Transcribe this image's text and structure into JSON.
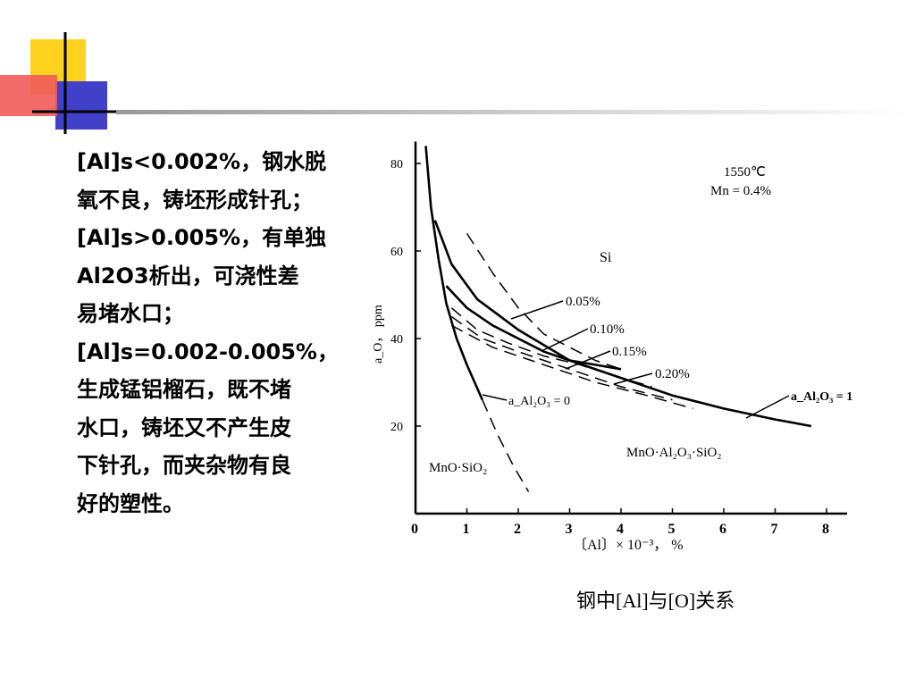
{
  "theme": {
    "accent_yellow": "#FFD21E",
    "accent_red": "#F25A5A",
    "accent_blue": "#4040C8",
    "rule_color": "#000000"
  },
  "text_lines": [
    "[Al]s<0.002%，钢水脱",
    "氧不良，铸坯形成针孔；",
    "[Al]s>0.005%，有单独",
    "Al2O3析出，可浇性差",
    "易堵水口；",
    "[Al]s=0.002-0.005%，",
    "生成锰铝榴石，既不堵",
    "水口，铸坯又不产生皮",
    "下针孔，而夹杂物有良",
    "好的塑性。"
  ],
  "caption": "钢中[Al]与[O]关系",
  "chart_data": {
    "type": "line",
    "xlabel": "〔Al〕× 10⁻³， %",
    "ylabel": "a_O， ppm",
    "xlim": [
      0,
      8
    ],
    "ylim": [
      0,
      85
    ],
    "x_ticks": [
      "0",
      "1",
      "2",
      "3",
      "4",
      "5",
      "6",
      "7",
      "8"
    ],
    "y_ticks": [
      "20",
      "40",
      "60",
      "80"
    ],
    "conditions": [
      "1550℃",
      "Mn = 0.4%"
    ],
    "annotations": {
      "si": "Si",
      "si_0_05": "0.05%",
      "si_0_10": "0.10%",
      "si_0_15": "0.15%",
      "si_0_20": "0.20%",
      "aAl2O3_0": "a_Al₂O₃ = 0",
      "aAl2O3_1": "a_Al₂O₃ = 1",
      "mno_sio2": "MnO·SiO₂",
      "mno_al2o3_sio2": "MnO·Al₂O₃·SiO₂"
    },
    "series": [
      {
        "style": "solid",
        "x": [
          0.2,
          0.3,
          0.45,
          0.6,
          0.8,
          1.0,
          1.3
        ],
        "y": [
          84,
          70,
          58,
          48,
          40,
          34,
          26
        ]
      },
      {
        "style": "solid",
        "x": [
          0.38,
          0.7,
          1.2,
          2.0,
          3.0,
          4.0,
          5.0,
          6.0,
          7.0,
          7.7
        ],
        "y": [
          67,
          57,
          49,
          42,
          35,
          31,
          27,
          24,
          21.5,
          20
        ]
      },
      {
        "style": "solid",
        "x": [
          0.6,
          1.0,
          1.5,
          2.0,
          2.5,
          3.0,
          3.5,
          4.0
        ],
        "y": [
          52,
          47,
          43,
          40,
          37,
          35,
          34,
          33
        ]
      },
      {
        "style": "dashed",
        "x": [
          1.0,
          1.5,
          2.0,
          2.5,
          3.0,
          3.5,
          4.0
        ],
        "y": [
          64,
          55,
          47,
          41,
          38,
          35,
          33
        ]
      },
      {
        "style": "dashed",
        "x": [
          0.7,
          1.2,
          1.8,
          2.5,
          3.2,
          4.0,
          4.6
        ],
        "y": [
          47,
          42,
          39,
          36,
          34,
          31,
          29
        ]
      },
      {
        "style": "dashed",
        "x": [
          0.7,
          1.3,
          2.0,
          3.0,
          4.0,
          5.0
        ],
        "y": [
          45,
          40,
          37,
          33,
          29,
          26
        ]
      },
      {
        "style": "dashed",
        "x": [
          0.7,
          1.5,
          2.5,
          3.5,
          4.5,
          5.4
        ],
        "y": [
          43,
          38,
          34,
          30,
          27,
          24
        ]
      },
      {
        "style": "dashed",
        "x": [
          1.3,
          1.6,
          1.9,
          2.2
        ],
        "y": [
          26,
          18,
          11,
          5
        ]
      }
    ]
  }
}
